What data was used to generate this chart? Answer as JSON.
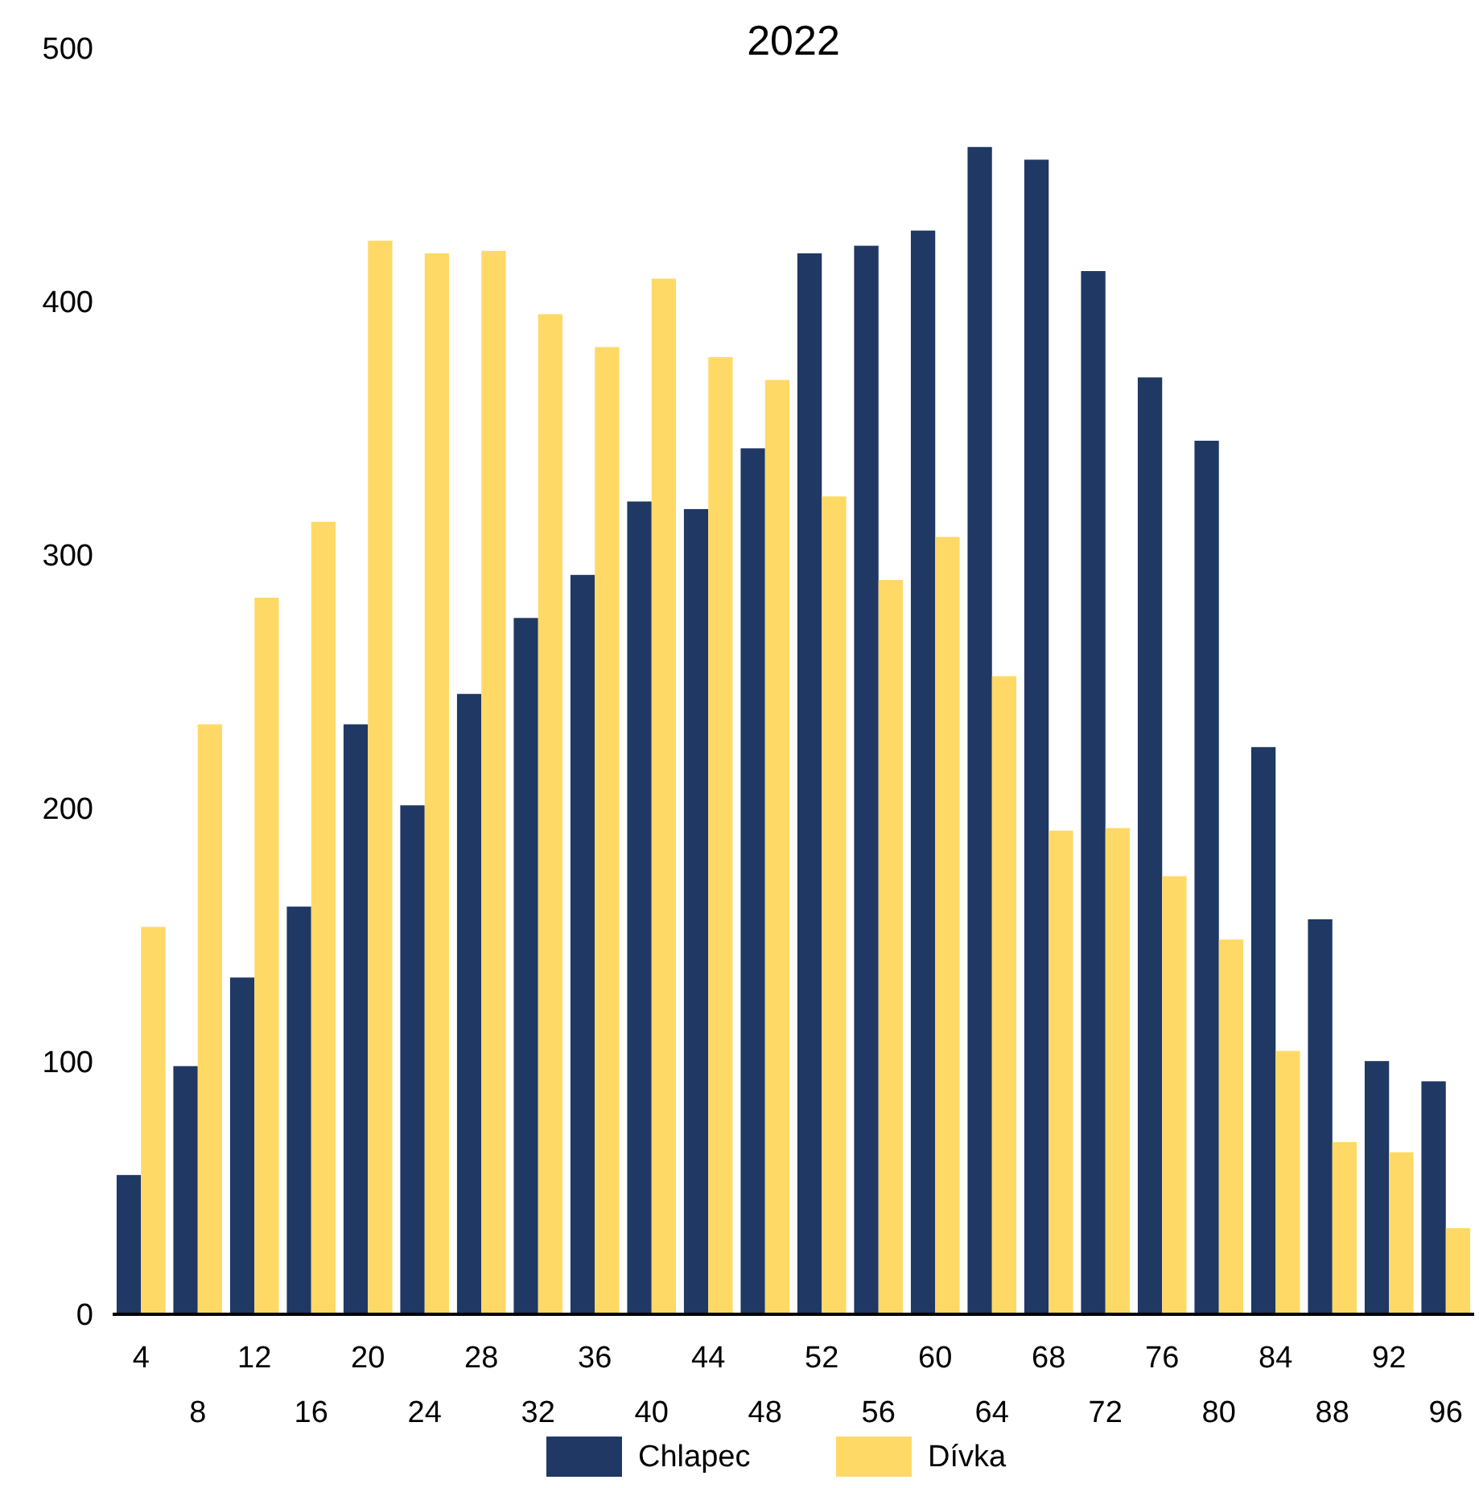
{
  "chart_data": {
    "type": "bar",
    "title": "2022",
    "categories": [
      "4",
      "8",
      "12",
      "16",
      "20",
      "24",
      "28",
      "32",
      "36",
      "40",
      "44",
      "48",
      "52",
      "56",
      "60",
      "64",
      "68",
      "72",
      "76",
      "80",
      "84",
      "88",
      "92",
      "96"
    ],
    "series": [
      {
        "name": "Chlapec",
        "color": "#1f3864",
        "values": [
          55,
          98,
          133,
          161,
          233,
          201,
          245,
          275,
          292,
          321,
          318,
          342,
          419,
          422,
          428,
          461,
          456,
          412,
          370,
          345,
          224,
          156,
          100,
          92
        ]
      },
      {
        "name": "Dívka",
        "color": "#ffd966",
        "values": [
          153,
          233,
          283,
          313,
          424,
          419,
          420,
          395,
          382,
          409,
          378,
          369,
          323,
          290,
          307,
          252,
          191,
          192,
          173,
          148,
          104,
          68,
          64,
          34
        ]
      }
    ],
    "ylim": [
      0,
      500
    ],
    "yticks": [
      0,
      100,
      200,
      300,
      400,
      500
    ],
    "grid": false,
    "legend": "bottom"
  }
}
